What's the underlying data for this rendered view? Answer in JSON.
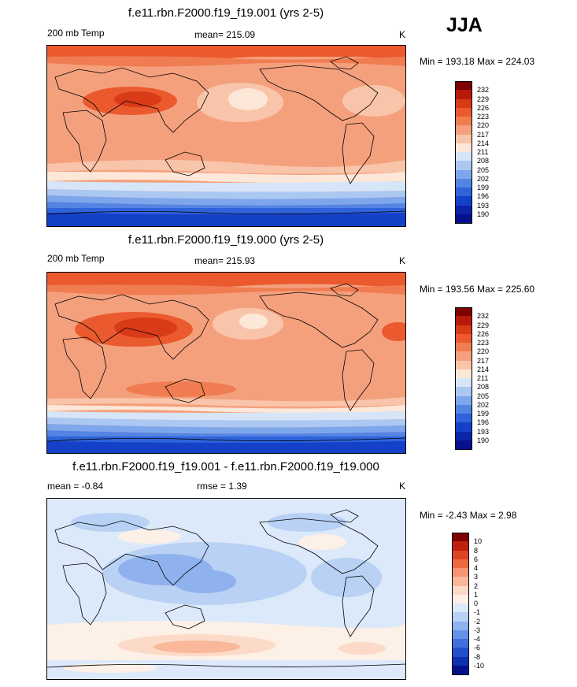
{
  "season_label": "JJA",
  "panels": [
    {
      "title": "f.e11.rbn.F2000.f19_f19.001 (yrs 2-5)",
      "left_label": "200 mb Temp",
      "center_label": "mean= 215.09",
      "units": "K",
      "minmax": "Min = 193.18 Max = 224.03",
      "legend_labels": [
        "232",
        "229",
        "226",
        "223",
        "220",
        "217",
        "214",
        "211",
        "208",
        "205",
        "202",
        "199",
        "196",
        "193",
        "190"
      ],
      "legend_colors": [
        "#7f0000",
        "#b81a0a",
        "#d93a17",
        "#ea5a2e",
        "#f07d52",
        "#f5a07d",
        "#f9c5aa",
        "#fde7d8",
        "#d6e6f8",
        "#abc8f2",
        "#7ea6ec",
        "#5484e4",
        "#2e63da",
        "#1540c8",
        "#0a24a8",
        "#05108a"
      ]
    },
    {
      "title": "f.e11.rbn.F2000.f19_f19.000 (yrs 2-5)",
      "left_label": "200 mb Temp",
      "center_label": "mean= 215.93",
      "units": "K",
      "minmax": "Min = 193.56 Max = 225.60",
      "legend_labels": [
        "232",
        "229",
        "226",
        "223",
        "220",
        "217",
        "214",
        "211",
        "208",
        "205",
        "202",
        "199",
        "196",
        "193",
        "190"
      ],
      "legend_colors": [
        "#7f0000",
        "#b81a0a",
        "#d93a17",
        "#ea5a2e",
        "#f07d52",
        "#f5a07d",
        "#f9c5aa",
        "#fde7d8",
        "#d6e6f8",
        "#abc8f2",
        "#7ea6ec",
        "#5484e4",
        "#2e63da",
        "#1540c8",
        "#0a24a8",
        "#05108a"
      ]
    },
    {
      "title": "f.e11.rbn.F2000.f19_f19.001 - f.e11.rbn.F2000.f19_f19.000",
      "left_label": "mean =  -0.84",
      "center_label": "rmse =   1.39",
      "units": "K",
      "minmax": "Min =  -2.43 Max =   2.98",
      "legend_labels": [
        "10",
        "8",
        "6",
        "4",
        "3",
        "2",
        "1",
        "0",
        "-1",
        "-2",
        "-3",
        "-4",
        "-6",
        "-8",
        "-10"
      ],
      "legend_colors": [
        "#7f0000",
        "#c0200f",
        "#dd4422",
        "#ee6a40",
        "#f49470",
        "#f8b899",
        "#fcdac8",
        "#fdf0e6",
        "#dce9fa",
        "#b8d1f4",
        "#8fb2ee",
        "#6692e6",
        "#3f70dc",
        "#2050cc",
        "#0d30b0",
        "#05108a"
      ]
    }
  ]
}
